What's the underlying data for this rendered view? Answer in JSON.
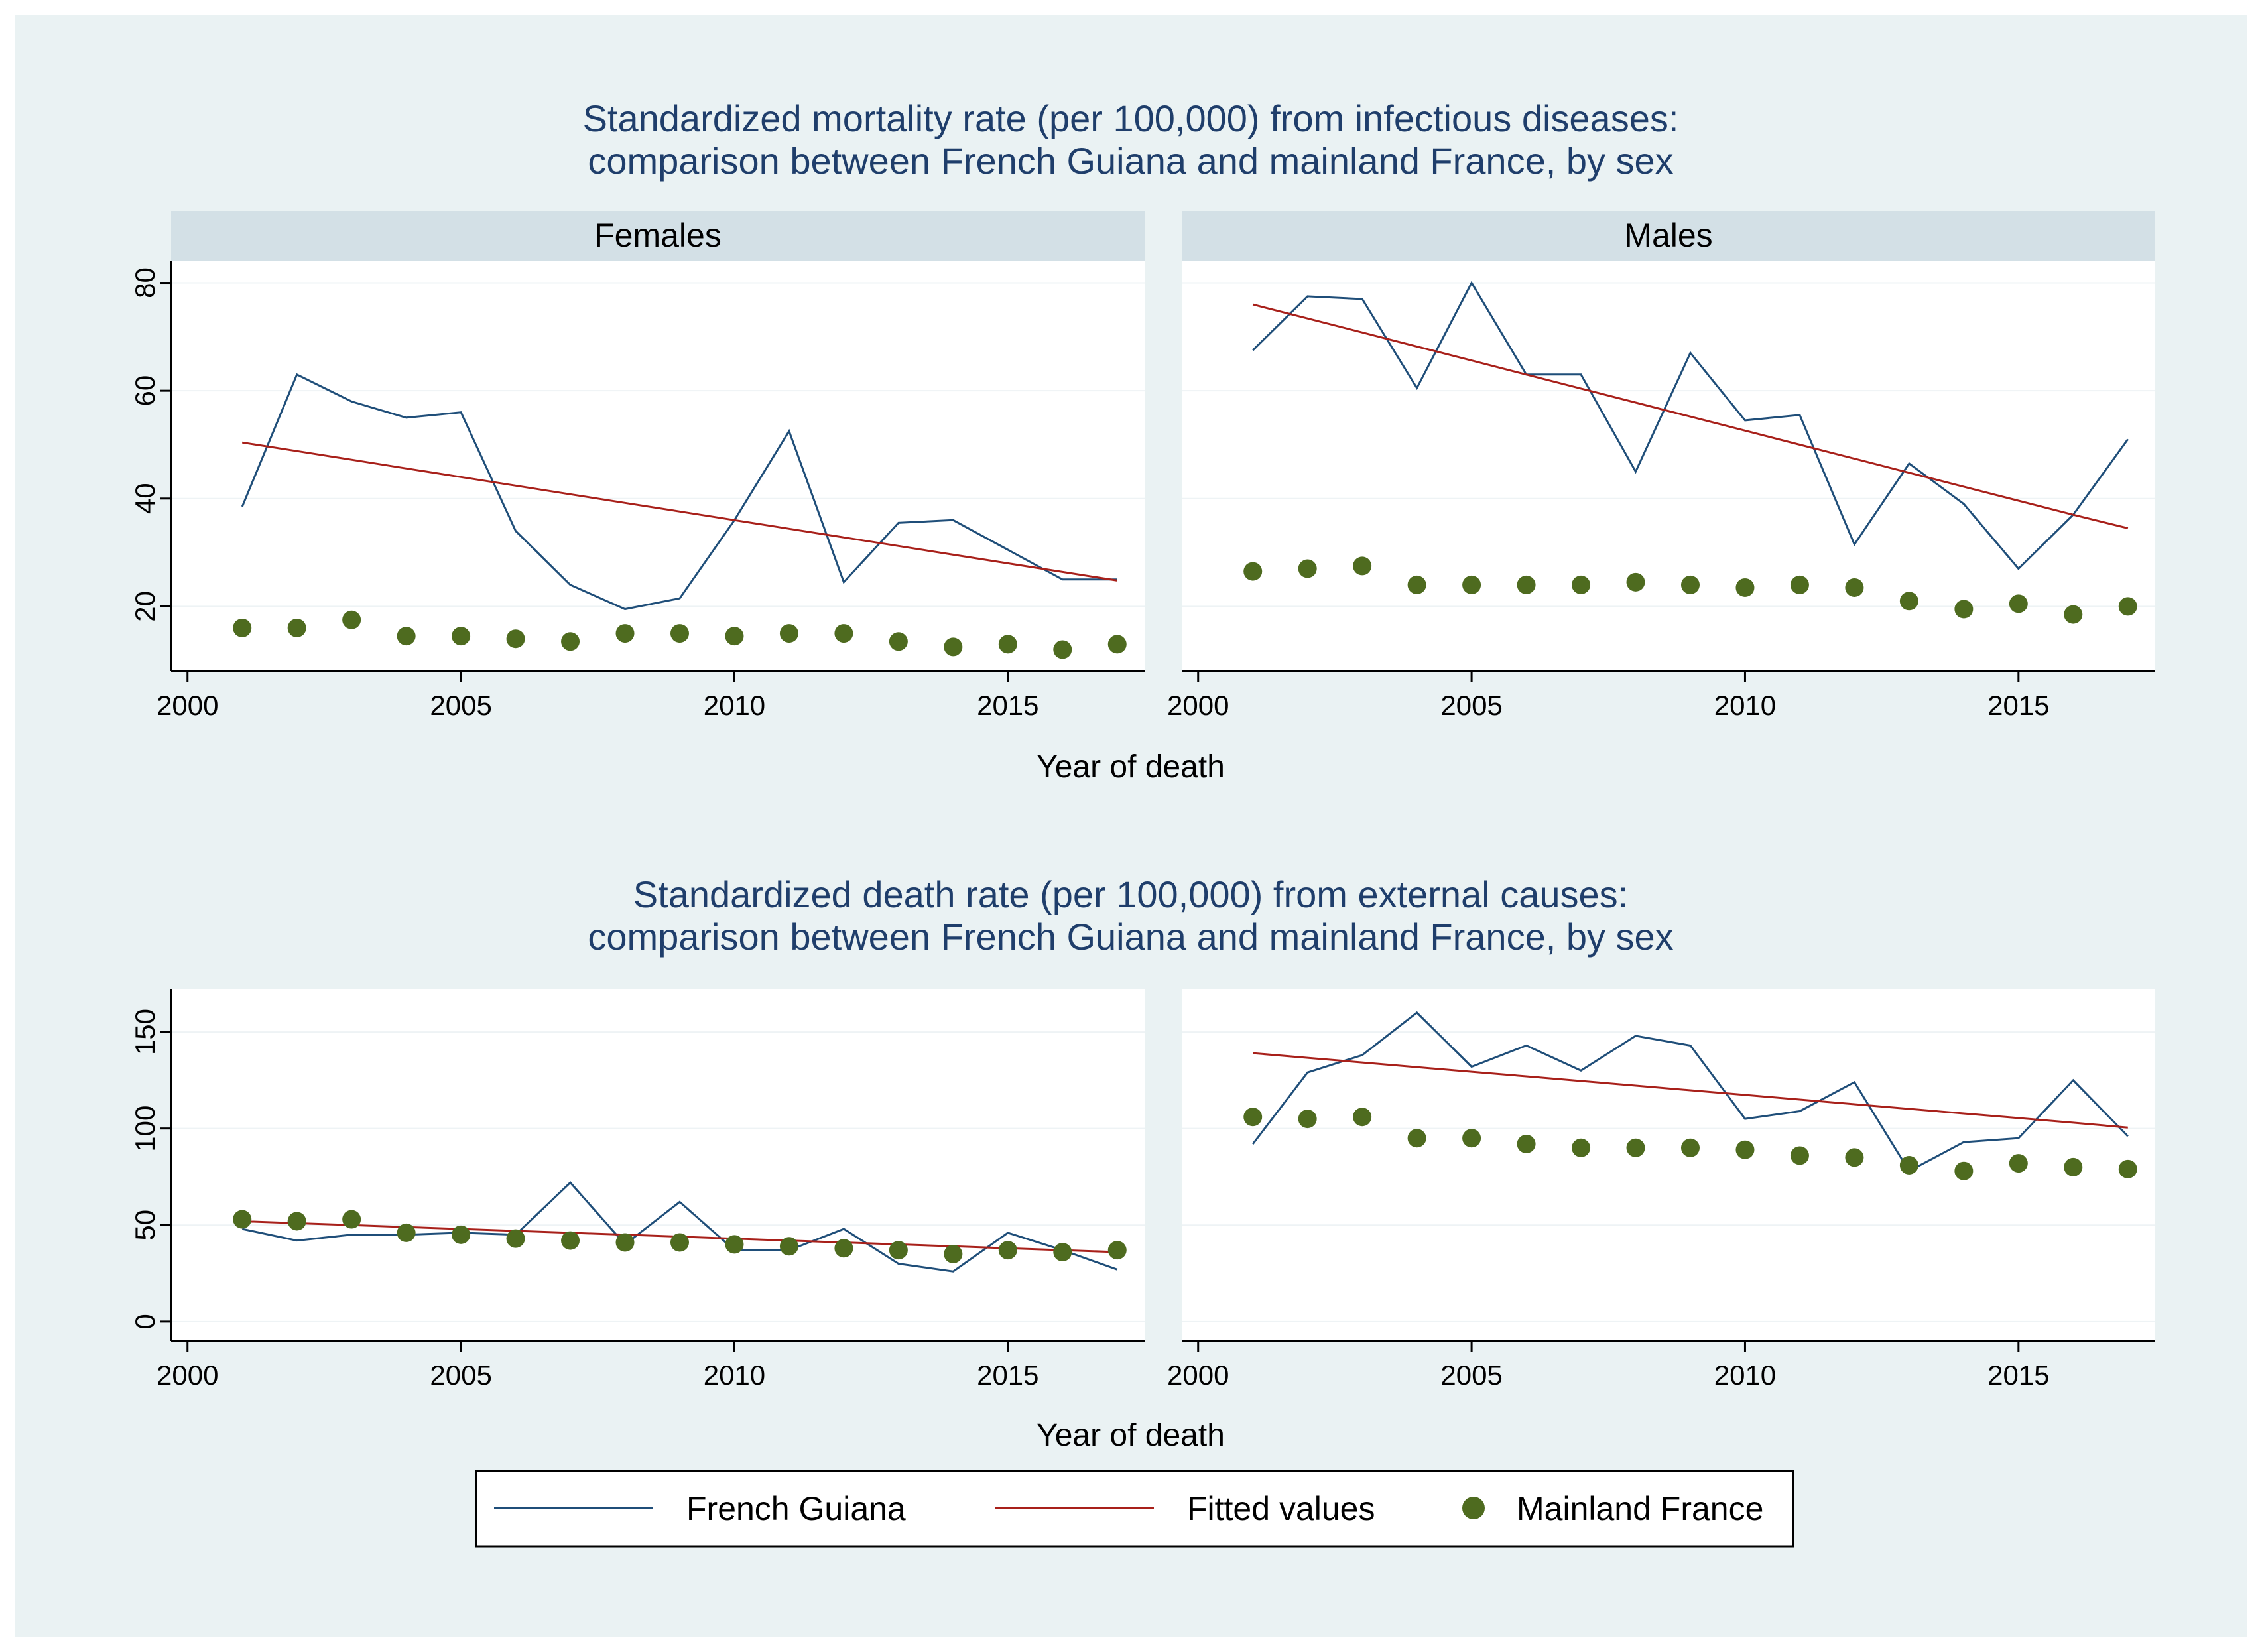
{
  "legend": {
    "items": [
      {
        "label": "French Guiana",
        "kind": "line",
        "color": "#1f4e79"
      },
      {
        "label": "Fitted values",
        "kind": "line",
        "color": "#a8201a"
      },
      {
        "label": "Mainland France",
        "kind": "dot",
        "color": "#4e6b1f"
      }
    ]
  },
  "colors": {
    "background": "#eaf2f3",
    "strip": "#d3e0e6",
    "plot": "#ffffff",
    "title": "#1f3e6b"
  },
  "chart_data": [
    {
      "type": "line",
      "title": "Standardized mortality rate (per 100,000) from infectious diseases:",
      "subtitle": "comparison between French Guiana and mainland France, by sex",
      "xlabel": "Year of death",
      "ylabel": "",
      "xlim": [
        1999.7,
        2017.5
      ],
      "ylim": [
        8,
        84
      ],
      "xticks": [
        2000,
        2005,
        2010,
        2015
      ],
      "yticks": [
        20,
        40,
        60,
        80
      ],
      "x": [
        2001,
        2002,
        2003,
        2004,
        2005,
        2006,
        2007,
        2008,
        2009,
        2010,
        2011,
        2012,
        2013,
        2014,
        2015,
        2016,
        2017
      ],
      "panels": [
        {
          "label": "Females",
          "series": [
            {
              "name": "French Guiana",
              "type": "line",
              "values": [
                38.5,
                63,
                58,
                55,
                56,
                34,
                24,
                19.5,
                21.5,
                36,
                52.5,
                24.5,
                35.5,
                36,
                30.5,
                25,
                25
              ]
            },
            {
              "name": "Fitted values",
              "type": "line",
              "values": [
                50.4,
                48.8,
                47.2,
                45.6,
                44.0,
                42.4,
                40.8,
                39.2,
                37.6,
                36.0,
                34.4,
                32.8,
                31.2,
                29.6,
                28.0,
                26.4,
                24.8
              ]
            },
            {
              "name": "Mainland France",
              "type": "scatter",
              "values": [
                16,
                16,
                17.5,
                14.5,
                14.5,
                14,
                13.5,
                15,
                15,
                14.5,
                15,
                15,
                13.5,
                12.5,
                13,
                12,
                13
              ]
            }
          ]
        },
        {
          "label": "Males",
          "series": [
            {
              "name": "French Guiana",
              "type": "line",
              "values": [
                67.5,
                77.5,
                77,
                60.5,
                80,
                63,
                63,
                45,
                67,
                54.5,
                55.5,
                31.5,
                46.5,
                39,
                27,
                37,
                51
              ]
            },
            {
              "name": "Fitted values",
              "type": "line",
              "values": [
                76.0,
                73.4,
                70.8,
                68.2,
                65.6,
                63.0,
                60.4,
                57.8,
                55.2,
                52.6,
                50.0,
                47.4,
                44.8,
                42.2,
                39.6,
                37.0,
                34.5
              ]
            },
            {
              "name": "Mainland France",
              "type": "scatter",
              "values": [
                26.5,
                27,
                27.5,
                24,
                24,
                24,
                24,
                24.5,
                24,
                23.5,
                24,
                23.5,
                21,
                19.5,
                20.5,
                18.5,
                20
              ]
            }
          ]
        }
      ]
    },
    {
      "type": "line",
      "title": "Standardized death rate (per 100,000) from external causes:",
      "subtitle": "comparison between French Guiana and mainland France, by sex",
      "xlabel": "Year of death",
      "ylabel": "",
      "xlim": [
        1999.7,
        2017.5
      ],
      "ylim": [
        -10,
        172
      ],
      "xticks": [
        2000,
        2005,
        2010,
        2015
      ],
      "yticks": [
        0,
        50,
        100,
        150
      ],
      "x": [
        2001,
        2002,
        2003,
        2004,
        2005,
        2006,
        2007,
        2008,
        2009,
        2010,
        2011,
        2012,
        2013,
        2014,
        2015,
        2016,
        2017
      ],
      "panels": [
        {
          "label": "",
          "series": [
            {
              "name": "French Guiana",
              "type": "line",
              "values": [
                48,
                42,
                45,
                45,
                46,
                45,
                72,
                40,
                62,
                37,
                37,
                48,
                30,
                26,
                46,
                37,
                27
              ]
            },
            {
              "name": "Fitted values",
              "type": "line",
              "values": [
                52.0,
                51.0,
                50.0,
                49.0,
                48.0,
                47.0,
                46.0,
                45.0,
                44.0,
                43.0,
                42.0,
                41.0,
                40.0,
                39.0,
                38.0,
                37.0,
                36.0
              ]
            },
            {
              "name": "Mainland France",
              "type": "scatter",
              "values": [
                53,
                52,
                53,
                46,
                45,
                43,
                42,
                41,
                41,
                40,
                39,
                38,
                37,
                35,
                37,
                36,
                37
              ]
            }
          ]
        },
        {
          "label": "",
          "series": [
            {
              "name": "French Guiana",
              "type": "line",
              "values": [
                92,
                129,
                138,
                160,
                132,
                143,
                130,
                148,
                143,
                105,
                109,
                124,
                78,
                93,
                95,
                125,
                96
              ]
            },
            {
              "name": "Fitted values",
              "type": "line",
              "values": [
                139.0,
                136.6,
                134.2,
                131.8,
                129.4,
                127.0,
                124.6,
                122.2,
                119.8,
                117.4,
                115.0,
                112.6,
                110.2,
                107.8,
                105.4,
                103.0,
                100.5
              ]
            },
            {
              "name": "Mainland France",
              "type": "scatter",
              "values": [
                106,
                105,
                106,
                95,
                95,
                92,
                90,
                90,
                90,
                89,
                86,
                85,
                81,
                78,
                82,
                80,
                79
              ]
            }
          ]
        }
      ]
    }
  ]
}
